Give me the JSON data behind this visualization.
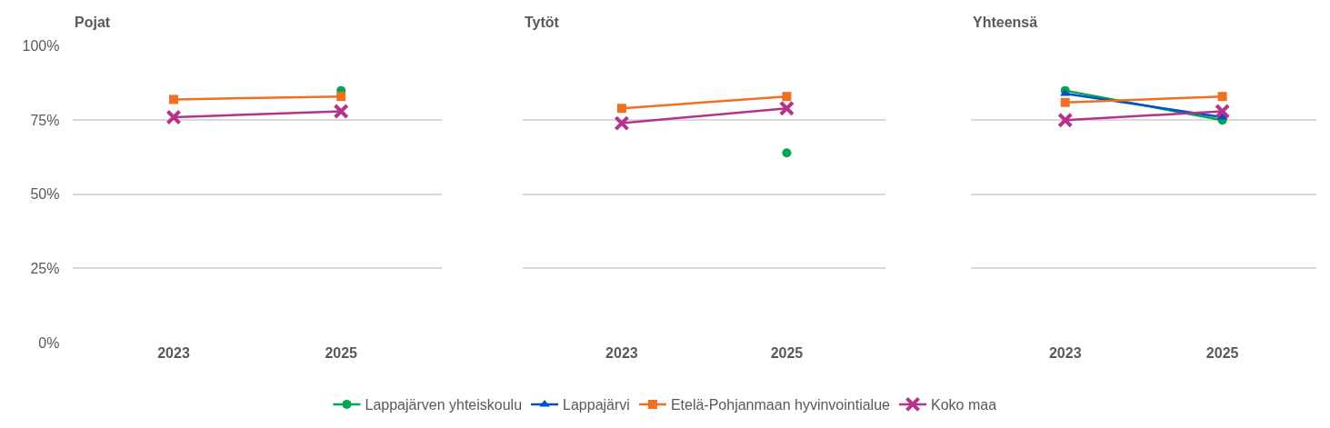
{
  "chart_data": [
    {
      "type": "line",
      "title": "Pojat",
      "categories": [
        "2023",
        "2025"
      ],
      "ylim": [
        0,
        1.0
      ],
      "yticks": [
        {
          "value": 0,
          "label": "0%"
        },
        {
          "value": 0.25,
          "label": "25%"
        },
        {
          "value": 0.5,
          "label": "50%"
        },
        {
          "value": 0.75,
          "label": "75%"
        },
        {
          "value": 1.0,
          "label": "100%"
        }
      ],
      "grid": "y",
      "legend": "bottom",
      "series": [
        {
          "name": "Lappajärven yhteiskoulu",
          "color": "#00a651",
          "marker": "circle",
          "values": [
            null,
            0.85
          ]
        },
        {
          "name": "Etelä-Pohjanmaan hyvinvointialue",
          "color": "#f07022",
          "marker": "square",
          "values": [
            0.82,
            0.83
          ]
        },
        {
          "name": "Koko maa",
          "color": "#b5338a",
          "marker": "cross",
          "values": [
            0.76,
            0.78
          ]
        }
      ]
    },
    {
      "type": "line",
      "title": "Tytöt",
      "categories": [
        "2023",
        "2025"
      ],
      "ylim": [
        0,
        1.0
      ],
      "yticks": [
        {
          "value": 0,
          "label": null
        },
        {
          "value": 0.25,
          "label": null
        },
        {
          "value": 0.5,
          "label": null
        },
        {
          "value": 0.75,
          "label": null
        },
        {
          "value": 1.0,
          "label": null
        }
      ],
      "grid": "y",
      "tick_labels": "x",
      "legend": "bottom",
      "series": [
        {
          "name": "Lappajärven yhteiskoulu",
          "color": "#00a651",
          "marker": "circle",
          "values": [
            null,
            0.64
          ]
        },
        {
          "name": "Etelä-Pohjanmaan hyvinvointialue",
          "color": "#f07022",
          "marker": "square",
          "values": [
            0.79,
            0.83
          ]
        },
        {
          "name": "Koko maa",
          "color": "#b5338a",
          "marker": "cross",
          "values": [
            0.74,
            0.79
          ]
        }
      ]
    },
    {
      "type": "line",
      "title": "Yhteensä",
      "categories": [
        "2023",
        "2025"
      ],
      "ylim": [
        0,
        1.0
      ],
      "yticks": [
        {
          "value": 0,
          "label": null
        },
        {
          "value": 0.25,
          "label": null
        },
        {
          "value": 0.5,
          "label": null
        },
        {
          "value": 0.75,
          "label": null
        },
        {
          "value": 1.0,
          "label": null
        }
      ],
      "grid": "y",
      "tick_labels": "x",
      "legend": "bottom",
      "series": [
        {
          "name": "Lappajärven yhteiskoulu",
          "color": "#00a651",
          "marker": "circle",
          "values": [
            0.85,
            0.75
          ]
        },
        {
          "name": "Lappajärvi",
          "color": "#0050c8",
          "marker": "triangle",
          "values": [
            0.84,
            0.76
          ]
        },
        {
          "name": "Etelä-Pohjanmaan hyvinvointialue",
          "color": "#f07022",
          "marker": "square",
          "values": [
            0.81,
            0.83
          ]
        },
        {
          "name": "Koko maa",
          "color": "#b5338a",
          "marker": "cross",
          "values": [
            0.75,
            0.78
          ]
        }
      ]
    }
  ]
}
